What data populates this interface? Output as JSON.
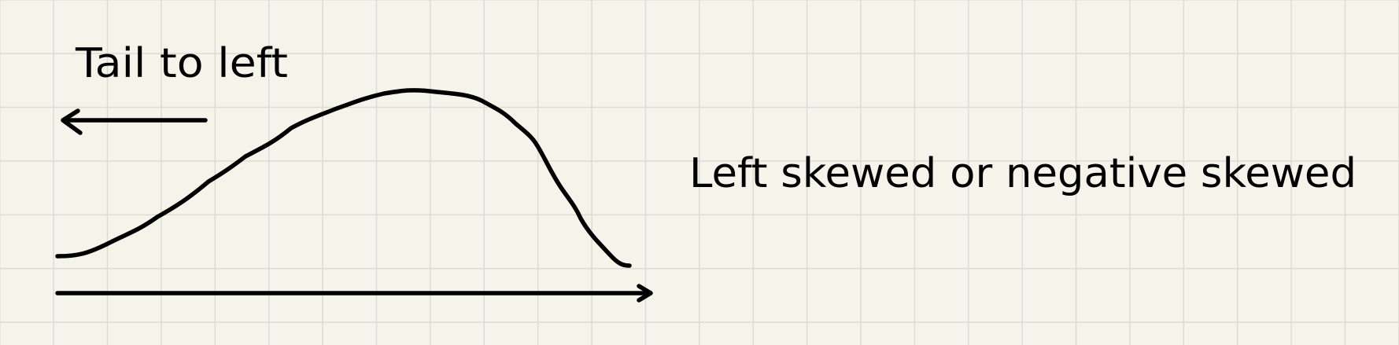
{
  "annotations": {
    "tail_label": "Tail to left",
    "skew_label": "Left skewed or negative skewed"
  },
  "colors": {
    "paper": "#f5f4ea",
    "grid": "#dcdcd6",
    "ink": "#000000"
  }
}
